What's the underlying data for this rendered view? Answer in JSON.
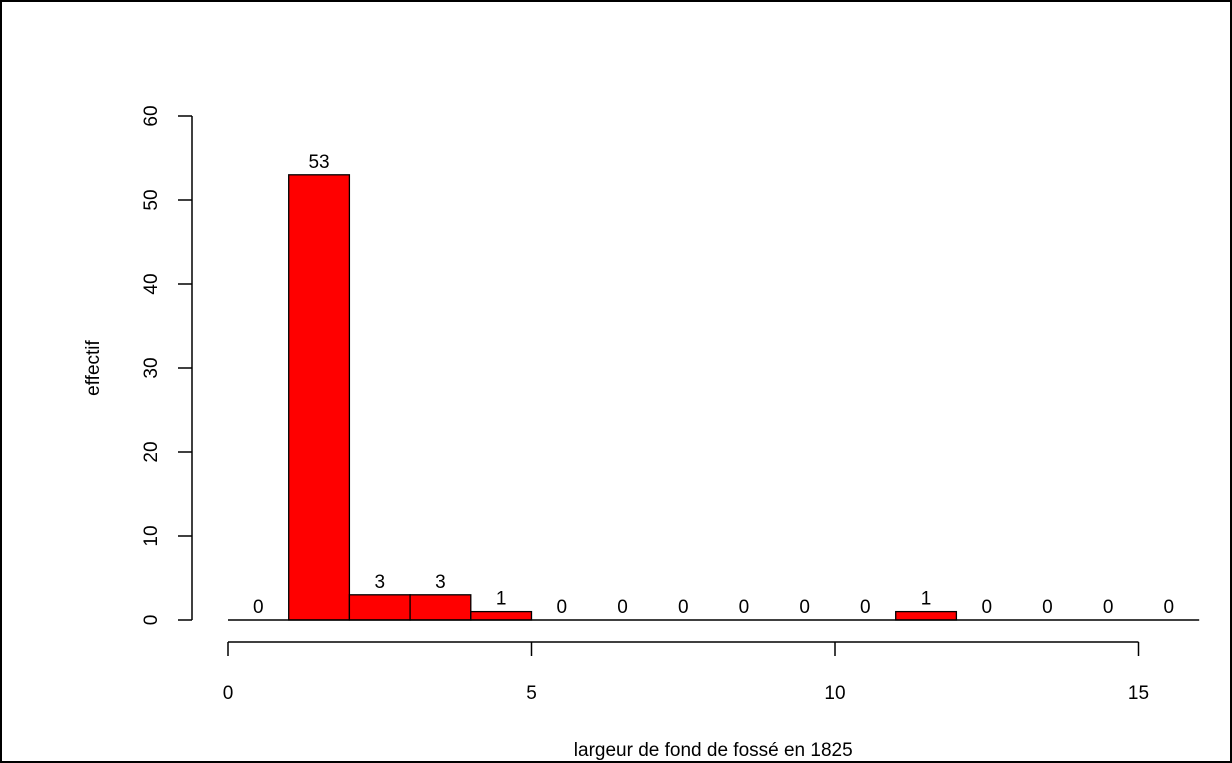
{
  "chart_data": {
    "type": "bar",
    "xlabel": "largeur de fond de fossé en 1825",
    "ylabel": "effectif",
    "bins": [
      {
        "from": 0,
        "to": 1,
        "count": 0,
        "label": "0"
      },
      {
        "from": 1,
        "to": 2,
        "count": 53,
        "label": "53"
      },
      {
        "from": 2,
        "to": 3,
        "count": 3,
        "label": "3"
      },
      {
        "from": 3,
        "to": 4,
        "count": 3,
        "label": "3"
      },
      {
        "from": 4,
        "to": 5,
        "count": 1,
        "label": "1"
      },
      {
        "from": 5,
        "to": 6,
        "count": 0,
        "label": "0"
      },
      {
        "from": 6,
        "to": 7,
        "count": 0,
        "label": "0"
      },
      {
        "from": 7,
        "to": 8,
        "count": 0,
        "label": "0"
      },
      {
        "from": 8,
        "to": 9,
        "count": 0,
        "label": "0"
      },
      {
        "from": 9,
        "to": 10,
        "count": 0,
        "label": "0"
      },
      {
        "from": 10,
        "to": 11,
        "count": 0,
        "label": "0"
      },
      {
        "from": 11,
        "to": 12,
        "count": 1,
        "label": "1"
      },
      {
        "from": 12,
        "to": 13,
        "count": 0,
        "label": "0"
      },
      {
        "from": 13,
        "to": 14,
        "count": 0,
        "label": "0"
      },
      {
        "from": 14,
        "to": 15,
        "count": 0,
        "label": "0"
      },
      {
        "from": 15,
        "to": 16,
        "count": 0,
        "label": "0"
      }
    ],
    "x_ticks": [
      {
        "value": 0,
        "label": "0"
      },
      {
        "value": 5,
        "label": "5"
      },
      {
        "value": 10,
        "label": "10"
      },
      {
        "value": 15,
        "label": "15"
      }
    ],
    "y_ticks": [
      {
        "value": 0,
        "label": "0"
      },
      {
        "value": 10,
        "label": "10"
      },
      {
        "value": 20,
        "label": "20"
      },
      {
        "value": 30,
        "label": "30"
      },
      {
        "value": 40,
        "label": "40"
      },
      {
        "value": 50,
        "label": "50"
      },
      {
        "value": 60,
        "label": "60"
      }
    ],
    "xlim": [
      0,
      15
    ],
    "ylim": [
      0,
      60
    ],
    "bar_color": "#ff0000",
    "bar_border_color": "#000000",
    "grid": false,
    "legend": "none"
  }
}
